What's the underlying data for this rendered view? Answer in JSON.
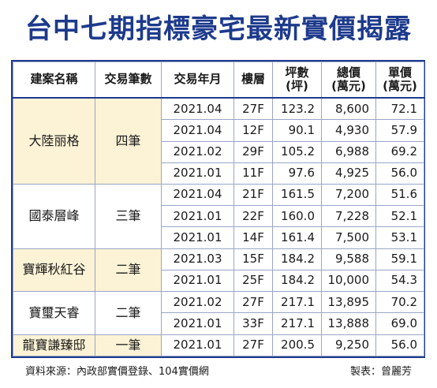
{
  "title": "台中七期指標豪宅最新實價揭露",
  "table": {
    "headers": [
      "建案名稱",
      "交易筆數",
      "交易年月",
      "樓層",
      "坪數\n(坪)",
      "總價\n(萬元)",
      "單價\n(萬元)"
    ],
    "rows": [
      {
        "name": "大陸丽格",
        "count": "四筆",
        "date": "2021.04",
        "floor": "27F",
        "ping": "123.2",
        "total": "8,600",
        "unit": "72.1"
      },
      {
        "name": "大陸丽格",
        "count": "四筆",
        "date": "2021.04",
        "floor": "12F",
        "ping": "90.1",
        "total": "4,930",
        "unit": "57.9"
      },
      {
        "name": "大陸丽格",
        "count": "四筆",
        "date": "2021.02",
        "floor": "29F",
        "ping": "105.2",
        "total": "6,988",
        "unit": "69.2"
      },
      {
        "name": "大陸丽格",
        "count": "四筆",
        "date": "2021.01",
        "floor": "11F",
        "ping": "97.6",
        "total": "4,925",
        "unit": "56.0"
      },
      {
        "name": "國泰層峰",
        "count": "三筆",
        "date": "2021.04",
        "floor": "21F",
        "ping": "161.5",
        "total": "7,200",
        "unit": "51.6"
      },
      {
        "name": "國泰層峰",
        "count": "三筆",
        "date": "2021.01",
        "floor": "22F",
        "ping": "160.0",
        "total": "7,228",
        "unit": "52.1"
      },
      {
        "name": "國泰層峰",
        "count": "三筆",
        "date": "2021.01",
        "floor": "14F",
        "ping": "161.4",
        "total": "7,500",
        "unit": "53.1"
      },
      {
        "name": "寶輝秋紅谷",
        "count": "二筆",
        "date": "2021.03",
        "floor": "15F",
        "ping": "184.2",
        "total": "9,588",
        "unit": "59.1"
      },
      {
        "name": "寶輝秋紅谷",
        "count": "二筆",
        "date": "2021.01",
        "floor": "25F",
        "ping": "184.2",
        "total": "10,000",
        "unit": "54.3"
      },
      {
        "name": "寶璽天睿",
        "count": "二筆",
        "date": "2021.02",
        "floor": "27F",
        "ping": "217.1",
        "total": "13,895",
        "unit": "70.2"
      },
      {
        "name": "寶璽天睿",
        "count": "二筆",
        "date": "2021.01",
        "floor": "33F",
        "ping": "217.1",
        "total": "13,888",
        "unit": "69.0"
      },
      {
        "name": "龍寶謙臻邸",
        "count": "一筆",
        "date": "2021.01",
        "floor": "27F",
        "ping": "200.5",
        "total": "9,250",
        "unit": "56.0"
      }
    ],
    "group_fill": "#fcf3d6"
  },
  "footer": {
    "source": "資料來源：內政部實價登錄、104實價網",
    "maker": "製表：曾麗芳"
  },
  "colors": {
    "title": "#1d3a8c",
    "border": "#1d3a8c",
    "grid": "#9aa6c6",
    "group_fill": "#fcf3d6"
  }
}
